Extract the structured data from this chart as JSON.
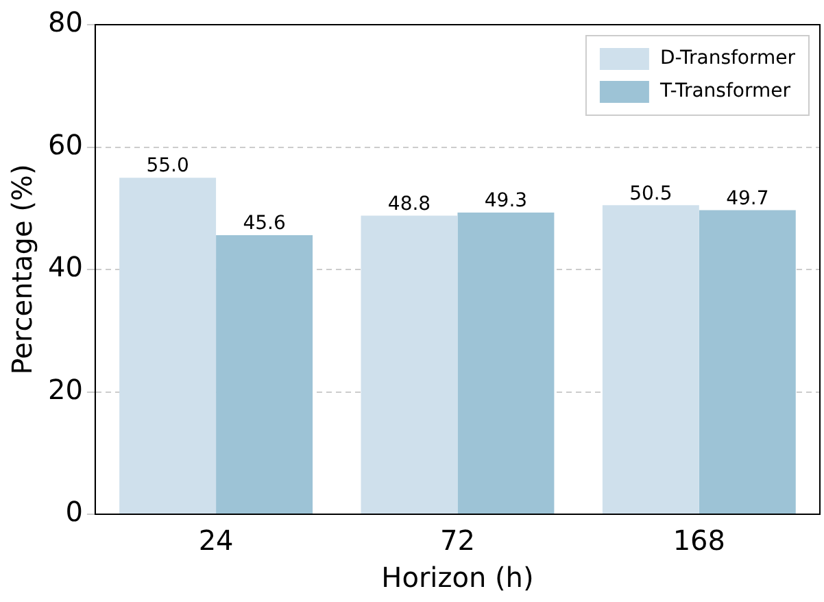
{
  "chart_data": {
    "type": "bar",
    "xlabel": "Horizon (h)",
    "ylabel": "Percentage (%)",
    "categories": [
      "24",
      "72",
      "168"
    ],
    "series": [
      {
        "name": "D-Transformer",
        "color": "#cfe0ec",
        "values": [
          55.0,
          48.8,
          50.5
        ],
        "value_labels": [
          "55.0",
          "48.8",
          "50.5"
        ]
      },
      {
        "name": "T-Transformer",
        "color": "#9dc3d6",
        "values": [
          45.6,
          49.3,
          49.7
        ],
        "value_labels": [
          "45.6",
          "49.3",
          "49.7"
        ]
      }
    ],
    "ylim": [
      0,
      80
    ],
    "yticks": [
      0,
      20,
      40,
      60,
      80
    ],
    "grid": "y",
    "legend": "top right"
  }
}
